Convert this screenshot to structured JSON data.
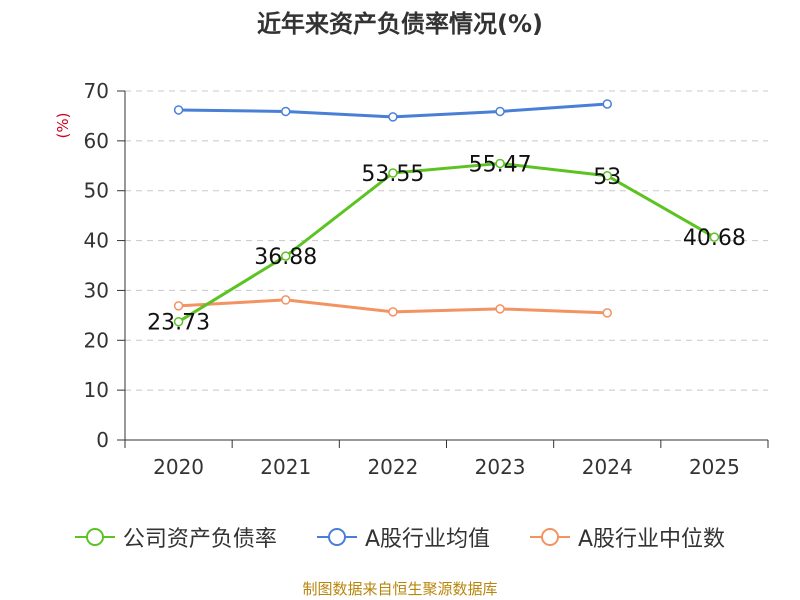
{
  "title": "近年来资产负债率情况(%)",
  "unit_label": "(%)",
  "unit_color": "#D0021B",
  "source": "制图数据来自恒生聚源数据库",
  "chart_data": {
    "type": "line",
    "title": "近年来资产负债率情况(%)",
    "xlabel": "",
    "ylabel": "(%)",
    "categories": [
      "2020",
      "2021",
      "2022",
      "2023",
      "2024",
      "2025"
    ],
    "ylim": [
      0,
      70
    ],
    "yticks": [
      0,
      10,
      20,
      30,
      40,
      50,
      60,
      70
    ],
    "grid": true,
    "legend_position": "bottom",
    "series": [
      {
        "name": "公司资产负债率",
        "color": "#5CC323",
        "values": [
          23.73,
          36.88,
          53.55,
          55.47,
          53,
          40.68
        ],
        "labels": [
          "23.73",
          "36.88",
          "53.55",
          "55.47",
          "53",
          "40.68"
        ]
      },
      {
        "name": "A股行业均值",
        "color": "#4A7FD8",
        "values": [
          66.2,
          65.9,
          64.8,
          65.9,
          67.4,
          null
        ]
      },
      {
        "name": "A股行业中位数",
        "color": "#F39361",
        "values": [
          26.9,
          28.1,
          25.7,
          26.3,
          25.5,
          null
        ]
      }
    ]
  }
}
